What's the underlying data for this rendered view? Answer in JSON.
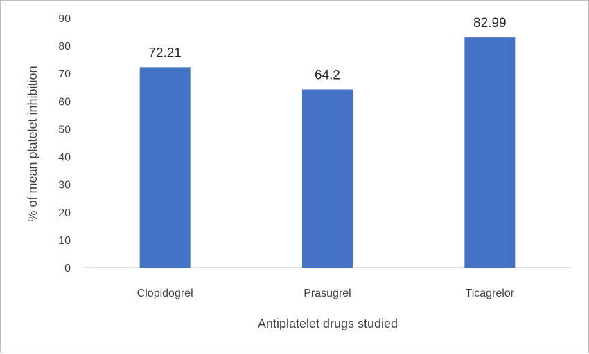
{
  "chart_data": {
    "type": "bar",
    "categories": [
      "Clopidogrel",
      "Prasugrel",
      "Ticagrelor"
    ],
    "values": [
      72.21,
      64.2,
      82.99
    ],
    "value_labels": [
      "72.21",
      "64.2",
      "82.99"
    ],
    "title": "",
    "xlabel": "Antiplatelet drugs studied",
    "ylabel": "% of mean platelet inhibition",
    "ylim": [
      0,
      90
    ],
    "yticks": [
      0,
      10,
      20,
      30,
      40,
      50,
      60,
      70,
      80,
      90
    ],
    "grid": false,
    "legend": "none",
    "bar_color": "#4472C4",
    "axis_color": "#d9d9d9",
    "text_color": "#404040"
  }
}
